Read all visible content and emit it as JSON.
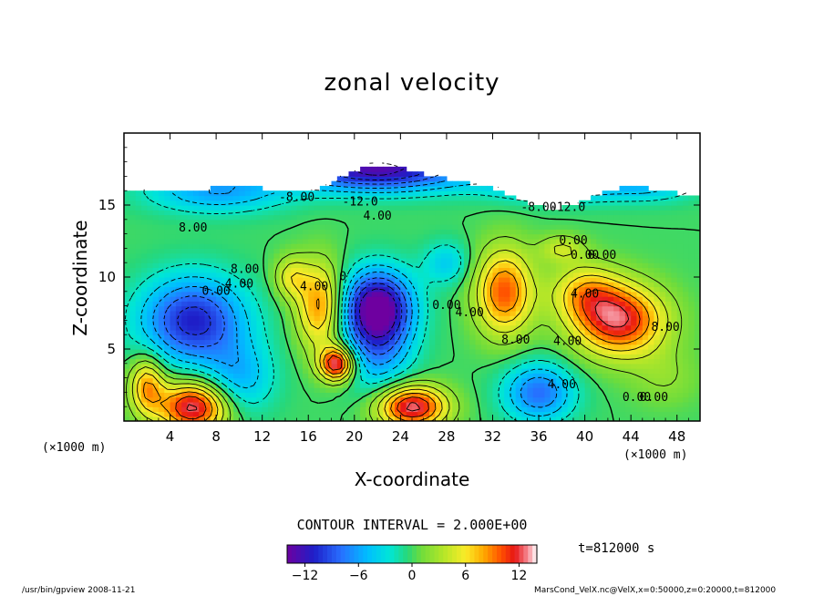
{
  "chart_data": {
    "type": "heatmap",
    "title": "zonal velocity",
    "xlabel": "X-coordinate",
    "ylabel": "Z-coordinate",
    "x_unit": "(×1000 m)",
    "xlim": [
      0,
      50
    ],
    "ylim": [
      0,
      20
    ],
    "x_ticks": [
      4,
      8,
      12,
      16,
      20,
      24,
      28,
      32,
      36,
      40,
      44,
      48
    ],
    "y_ticks": [
      5,
      10,
      15
    ],
    "contour_interval": "CONTOUR INTERVAL = 2.000E+00",
    "colorbar": {
      "min": -14,
      "max": 14,
      "ticks": [
        -12,
        -6,
        0,
        6,
        12
      ]
    },
    "contour_labels": [
      "-12.0",
      "8.00",
      "4.00",
      "-8.00",
      "4.00",
      "0.00",
      "0.00",
      "4.00",
      "0",
      "4.00",
      "0.00",
      "0.00",
      "8.00",
      "4.00",
      "0.00",
      "8.00",
      "4.00",
      "8.00",
      "0.00",
      "0.00",
      "4.00",
      "-8.00",
      "-12.0"
    ],
    "features": [
      {
        "kind": "min",
        "x": 22,
        "y": 8,
        "value": -14
      },
      {
        "kind": "min",
        "x": 6,
        "y": 7,
        "value": -11
      },
      {
        "kind": "min",
        "x": 22,
        "y": 17,
        "value": -13
      },
      {
        "kind": "max",
        "x": 18.5,
        "y": 4,
        "value": 13
      },
      {
        "kind": "max",
        "x": 6,
        "y": 1,
        "value": 13
      },
      {
        "kind": "max",
        "x": 25,
        "y": 1,
        "value": 13
      },
      {
        "kind": "max",
        "x": 43,
        "y": 7,
        "value": 12
      },
      {
        "kind": "max",
        "x": 14.5,
        "y": 10,
        "value": 11
      },
      {
        "kind": "max",
        "x": 33,
        "y": 9,
        "value": 10
      }
    ]
  },
  "time_label": "t=812000 s",
  "footer_left": "/usr/bin/gpview   2008-11-21",
  "footer_right": "MarsCond_VelX.nc@VelX,x=0:50000,z=0:20000,t=812000"
}
